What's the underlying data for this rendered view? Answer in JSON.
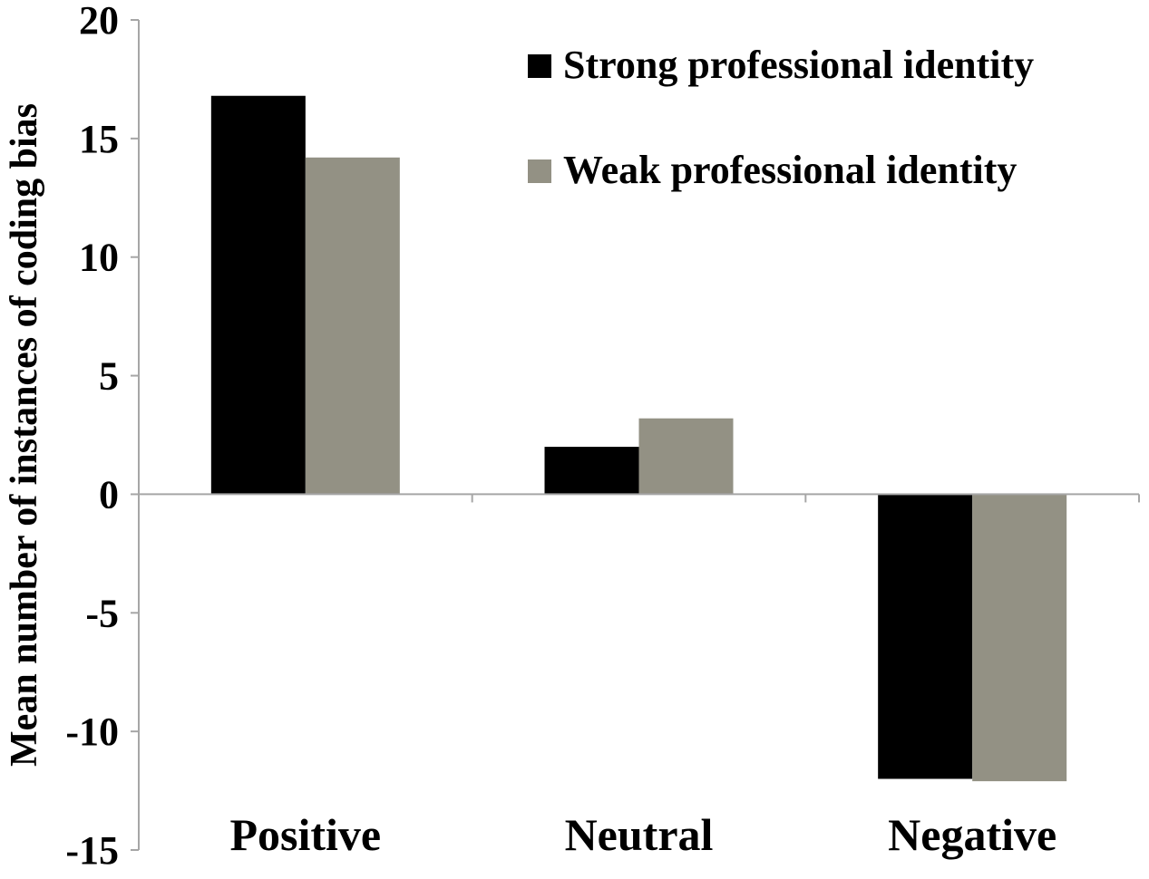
{
  "chart_data": {
    "type": "bar",
    "categories": [
      "Positive",
      "Neutral",
      "Negative"
    ],
    "series": [
      {
        "name": "Strong professional identity",
        "color": "#000000",
        "values": [
          16.8,
          2.0,
          -12.0
        ]
      },
      {
        "name": "Weak professional identity",
        "color": "#939184",
        "values": [
          14.2,
          3.2,
          -12.1
        ]
      }
    ],
    "title": "",
    "xlabel": "",
    "ylabel": "Mean number of instances of coding bias",
    "ylim": [
      -15,
      20
    ],
    "yticks": [
      20,
      15,
      10,
      5,
      0,
      -5,
      -10,
      -15
    ],
    "legend_position": "top-right",
    "grid": false,
    "axis_color": "#a6a6a6"
  }
}
